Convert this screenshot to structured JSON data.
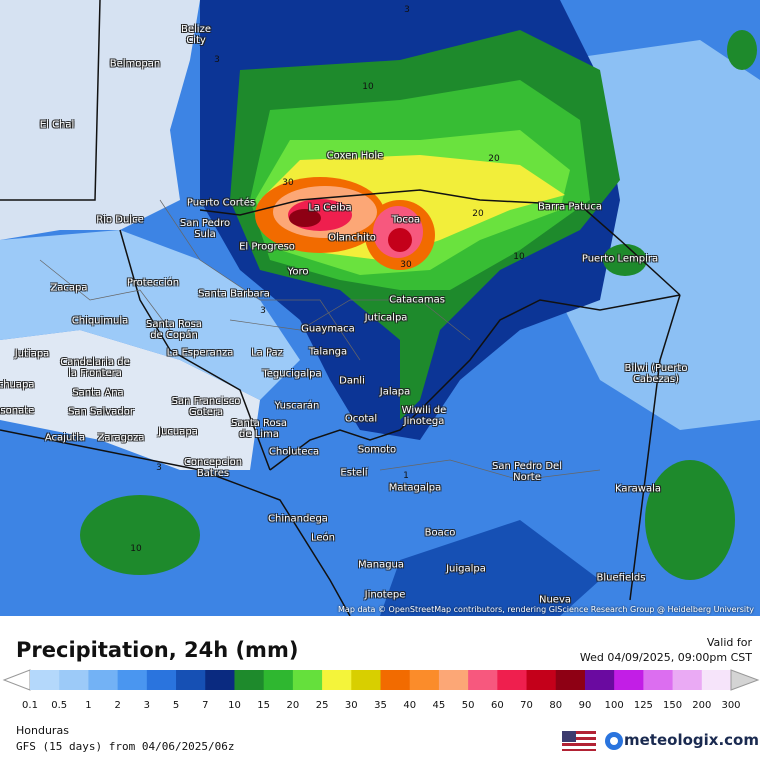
{
  "map": {
    "places": [
      "Belize City",
      "Belmopan",
      "El Chal",
      "Coxen Hole",
      "Puerto Cortés",
      "La Ceiba",
      "Tocoa",
      "Barra Patuca",
      "Rio Dulce",
      "San Pedro Sula",
      "Olanchito",
      "El Progreso",
      "Puerto Lempira",
      "Yoro",
      "Zacapa",
      "Protección",
      "Santa Barbara",
      "Catacamas",
      "Chiquimula",
      "Juticalpa",
      "Santa Rosa de Copán",
      "Guaymaca",
      "Jutiapa",
      "La Esperanza",
      "La Paz",
      "Talanga",
      "Candelaria de la Frontera",
      "Tegucigalpa",
      "Bilwi (Puerto Cabezas)",
      "Chalchuapa",
      "Danli",
      "Santa Ana",
      "Jalapa",
      "San Francisco Gotera",
      "Sonsonate",
      "San Salvador",
      "Yuscarán",
      "Wiwili de Jinotega",
      "Ocotal",
      "Santa Rosa de Lima",
      "Acajutla",
      "Zaragoza",
      "Jucuapa",
      "Somoto",
      "Choluteca",
      "Concepcion Batres",
      "Estelí",
      "San Pedro Del Norte",
      "Karawala",
      "Matagalpa",
      "Chinandega",
      "Boaco",
      "León",
      "Managua",
      "Juigalpa",
      "Bluefields",
      "Jinotepe",
      "Nueva"
    ],
    "contour_labels": [
      3,
      3,
      3,
      3,
      10,
      10,
      10,
      30,
      30,
      20,
      20,
      1
    ],
    "attribution": "Map data © OpenStreetMap contributors, rendering GIScience Research Group @ Heidelberg University"
  },
  "header": {
    "title": "Precipitation, 24h (mm)",
    "valid_label": "Valid for",
    "valid_time": "Wed 04/09/2025, 09:00pm CST"
  },
  "legend": {
    "labels": [
      0.1,
      0.5,
      1,
      2,
      3,
      5,
      7,
      10,
      15,
      20,
      25,
      30,
      35,
      40,
      45,
      50,
      60,
      70,
      80,
      90,
      100,
      125,
      150,
      200,
      300
    ],
    "colors": [
      "#b4d8fb",
      "#9ccaf8",
      "#73b2f5",
      "#4a96f0",
      "#2a74de",
      "#1650b4",
      "#0a2a80",
      "#1e8a2c",
      "#2fb730",
      "#65e03c",
      "#f4f43a",
      "#d8cf00",
      "#f26b00",
      "#fb8c2a",
      "#fca776",
      "#f7587e",
      "#ef1f4e",
      "#c4001a",
      "#8e0014",
      "#6a0aa0",
      "#c21ee6",
      "#dc6ef0",
      "#eaaaf4",
      "#f6e4fa",
      "#d4d4d4"
    ]
  },
  "footer": {
    "region": "Honduras",
    "model": "GFS (15 days) from 04/06/2025/06z",
    "brand": "meteologix.com"
  }
}
